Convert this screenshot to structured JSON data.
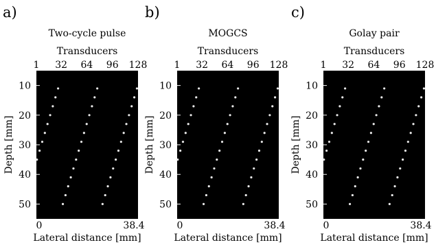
{
  "panels": [
    {
      "letter": "a)",
      "title": "Two-cycle pulse",
      "top_axis_label": "Transducers",
      "top_ticks": [
        "1",
        "32",
        "64",
        "96",
        "128"
      ],
      "ylabel": "Depth [mm]",
      "y_ticks": [
        "10",
        "20",
        "30",
        "40",
        "50"
      ],
      "xlabel": "Lateral distance [mm]",
      "x_ticks": [
        "0",
        "38.4"
      ]
    },
    {
      "letter": "b)",
      "title": "MOGCS",
      "top_axis_label": "Transducers",
      "top_ticks": [
        "1",
        "32",
        "64",
        "96",
        "128"
      ],
      "ylabel": "Depth [mm]",
      "y_ticks": [
        "10",
        "20",
        "30",
        "40",
        "50"
      ],
      "xlabel": "Lateral distance [mm]",
      "x_ticks": [
        "0",
        "38.4"
      ]
    },
    {
      "letter": "c)",
      "title": "Golay pair",
      "top_axis_label": "Transducers",
      "top_ticks": [
        "1",
        "32",
        "64",
        "96",
        "128"
      ],
      "ylabel": "Depth [mm]",
      "y_ticks": [
        "10",
        "20",
        "30",
        "40",
        "50"
      ],
      "xlabel": "Lateral distance [mm]",
      "x_ticks": [
        "0",
        "38.4"
      ]
    }
  ],
  "chart_data": [
    {
      "type": "scatter",
      "title": "Two-cycle pulse",
      "xlabel": "Lateral distance [mm]",
      "ylabel": "Depth [mm]",
      "xlim": [
        0,
        38.4
      ],
      "ylim": [
        55,
        5
      ],
      "top_axis": {
        "label": "Transducers",
        "ticks": [
          1,
          32,
          64,
          96,
          128
        ]
      },
      "background": "#000000",
      "point_color": "#e8e8e8",
      "series": [
        {
          "x": [
            8.2,
            7.2,
            6.2,
            5.2,
            4.2,
            3.2,
            2.2,
            1.2,
            0.2
          ],
          "y": [
            11,
            14,
            17,
            20,
            23,
            26,
            29,
            32,
            35
          ]
        },
        {
          "x": [
            23.0,
            22.0,
            21.0,
            20.0,
            19.0,
            18.0,
            17.0,
            16.0,
            15.0,
            14.0,
            13.0,
            12.0,
            11.0,
            10.0
          ],
          "y": [
            11,
            14,
            17,
            20,
            23,
            26,
            29,
            32,
            35,
            38,
            41,
            44,
            47,
            50
          ]
        },
        {
          "x": [
            38.0,
            37.0,
            36.0,
            35.0,
            34.0,
            33.0,
            32.0,
            31.0,
            30.0,
            29.0,
            28.0,
            27.0,
            26.0,
            25.0
          ],
          "y": [
            11,
            14,
            17,
            20,
            23,
            26,
            29,
            32,
            35,
            38,
            41,
            44,
            47,
            50
          ]
        }
      ]
    },
    {
      "type": "scatter",
      "title": "MOGCS",
      "xlabel": "Lateral distance [mm]",
      "ylabel": "Depth [mm]",
      "xlim": [
        0,
        38.4
      ],
      "ylim": [
        55,
        5
      ],
      "top_axis": {
        "label": "Transducers",
        "ticks": [
          1,
          32,
          64,
          96,
          128
        ]
      },
      "background": "#000000",
      "point_color": "#e8e8e8",
      "series": [
        {
          "x": [
            8.2,
            7.2,
            6.2,
            5.2,
            4.2,
            3.2,
            2.2,
            1.2,
            0.2
          ],
          "y": [
            11,
            14,
            17,
            20,
            23,
            26,
            29,
            32,
            35
          ]
        },
        {
          "x": [
            23.0,
            22.0,
            21.0,
            20.0,
            19.0,
            18.0,
            17.0,
            16.0,
            15.0,
            14.0,
            13.0,
            12.0,
            11.0,
            10.0
          ],
          "y": [
            11,
            14,
            17,
            20,
            23,
            26,
            29,
            32,
            35,
            38,
            41,
            44,
            47,
            50
          ]
        },
        {
          "x": [
            38.0,
            37.0,
            36.0,
            35.0,
            34.0,
            33.0,
            32.0,
            31.0,
            30.0,
            29.0,
            28.0,
            27.0,
            26.0,
            25.0
          ],
          "y": [
            11,
            14,
            17,
            20,
            23,
            26,
            29,
            32,
            35,
            38,
            41,
            44,
            47,
            50
          ]
        }
      ]
    },
    {
      "type": "scatter",
      "title": "Golay pair",
      "xlabel": "Lateral distance [mm]",
      "ylabel": "Depth [mm]",
      "xlim": [
        0,
        38.4
      ],
      "ylim": [
        55,
        5
      ],
      "top_axis": {
        "label": "Transducers",
        "ticks": [
          1,
          32,
          64,
          96,
          128
        ]
      },
      "background": "#000000",
      "point_color": "#e8e8e8",
      "series": [
        {
          "x": [
            8.2,
            7.2,
            6.2,
            5.2,
            4.2,
            3.2,
            2.2,
            1.2,
            0.2
          ],
          "y": [
            11,
            14,
            17,
            20,
            23,
            26,
            29,
            32,
            35
          ]
        },
        {
          "x": [
            23.0,
            22.0,
            21.0,
            20.0,
            19.0,
            18.0,
            17.0,
            16.0,
            15.0,
            14.0,
            13.0,
            12.0,
            11.0,
            10.0
          ],
          "y": [
            11,
            14,
            17,
            20,
            23,
            26,
            29,
            32,
            35,
            38,
            41,
            44,
            47,
            50
          ]
        },
        {
          "x": [
            38.0,
            37.0,
            36.0,
            35.0,
            34.0,
            33.0,
            32.0,
            31.0,
            30.0,
            29.0,
            28.0,
            27.0,
            26.0,
            25.0
          ],
          "y": [
            11,
            14,
            17,
            20,
            23,
            26,
            29,
            32,
            35,
            38,
            41,
            44,
            47,
            50
          ]
        }
      ]
    }
  ]
}
